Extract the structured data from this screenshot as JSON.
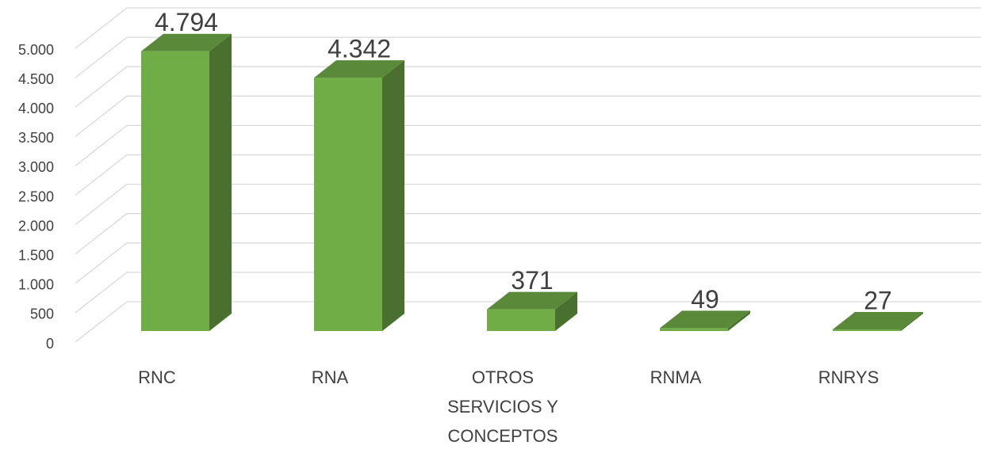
{
  "chart_data": {
    "type": "bar3d",
    "categories": [
      "RNC",
      "RNA",
      "OTROS SERVICIOS Y CONCEPTOS",
      "RNMA",
      "RNRYS"
    ],
    "values": [
      4794,
      4342,
      371,
      49,
      27
    ],
    "value_labels": [
      "4.794",
      "4.342",
      "371",
      "49",
      "27"
    ],
    "color": "#70ad47",
    "ylim": [
      0,
      5000
    ],
    "yticks": [
      0,
      500,
      {
        "value": 1000,
        "label": "1.000"
      },
      {
        "value": 1500,
        "label": "1.500"
      },
      {
        "value": 2000,
        "label": "2.000"
      },
      {
        "value": 2500,
        "label": "2.500"
      },
      {
        "value": 3000,
        "label": "3.000"
      },
      {
        "value": 3500,
        "label": "3.500"
      },
      {
        "value": 4000,
        "label": "4.000"
      },
      {
        "value": 4500,
        "label": "4.500"
      },
      {
        "value": 5000,
        "label": "5.000"
      }
    ],
    "grid": true
  }
}
